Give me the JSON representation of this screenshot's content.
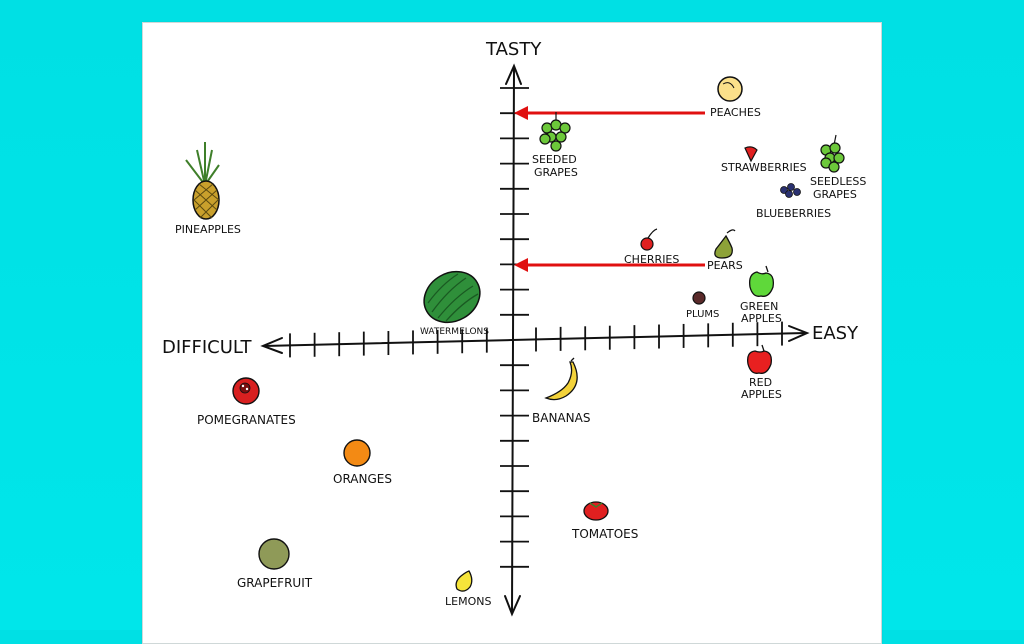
{
  "axes": {
    "top_label": "TASTY",
    "left_label": "DIFFICULT",
    "right_label": "EASY"
  },
  "fruits": [
    {
      "id": "pineapples",
      "label_lines": [
        "PINEAPPLES"
      ]
    },
    {
      "id": "peaches",
      "label_lines": [
        "PEACHES"
      ]
    },
    {
      "id": "seeded-grapes",
      "label_lines": [
        "SEEDED",
        "GRAPES"
      ]
    },
    {
      "id": "strawberries",
      "label_lines": [
        "STRAWBERRIES"
      ]
    },
    {
      "id": "seedless-grapes",
      "label_lines": [
        "SEEDLESS",
        "GRAPES"
      ]
    },
    {
      "id": "blueberries",
      "label_lines": [
        "BLUEBERRIES"
      ]
    },
    {
      "id": "cherries",
      "label_lines": [
        "CHERRIES"
      ]
    },
    {
      "id": "pears",
      "label_lines": [
        "PEARS"
      ]
    },
    {
      "id": "green-apples",
      "label_lines": [
        "GREEN",
        "APPLES"
      ]
    },
    {
      "id": "plums",
      "label_lines": [
        "PLUMS"
      ]
    },
    {
      "id": "watermelons",
      "label_lines": [
        "WATERMELONS"
      ]
    },
    {
      "id": "red-apples",
      "label_lines": [
        "RED",
        "APPLES"
      ]
    },
    {
      "id": "pomegranates",
      "label_lines": [
        "POMEGRANATES"
      ]
    },
    {
      "id": "bananas",
      "label_lines": [
        "BANANAS"
      ]
    },
    {
      "id": "oranges",
      "label_lines": [
        "ORANGES"
      ]
    },
    {
      "id": "tomatoes",
      "label_lines": [
        "TOMATOES"
      ]
    },
    {
      "id": "grapefruit",
      "label_lines": [
        "GRAPEFRUIT"
      ]
    },
    {
      "id": "lemons",
      "label_lines": [
        "LEMONS"
      ]
    }
  ],
  "colors": {
    "background": "#00e3e7",
    "arrow": "#e01010",
    "axis": "#111111"
  }
}
